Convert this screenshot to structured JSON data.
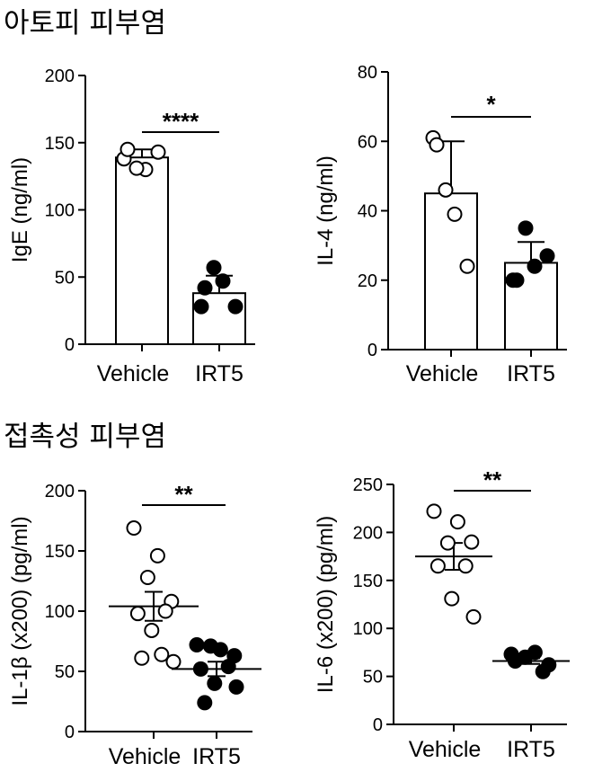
{
  "sections": [
    {
      "title": "아토피 피부염"
    },
    {
      "title": "접촉성 피부염"
    }
  ],
  "chart_data": [
    {
      "type": "bar",
      "ylabel": "IgE (ng/ml)",
      "ylim": [
        0,
        200
      ],
      "yticks": [
        0,
        50,
        100,
        150,
        200
      ],
      "categories": [
        "Vehicle",
        "IRT5"
      ],
      "means": [
        139,
        38
      ],
      "errors": [
        6,
        13
      ],
      "points": [
        [
          138,
          130,
          131,
          143,
          145
        ],
        [
          28,
          47,
          57,
          28,
          42
        ]
      ],
      "significance": "****"
    },
    {
      "type": "bar",
      "ylabel": "IL-4 (ng/ml)",
      "ylim": [
        0,
        80
      ],
      "yticks": [
        0,
        20,
        40,
        60,
        80
      ],
      "categories": [
        "Vehicle",
        "IRT5"
      ],
      "means": [
        45,
        25
      ],
      "errors": [
        15,
        6
      ],
      "points": [
        [
          61,
          39,
          46,
          24,
          59
        ],
        [
          20,
          24,
          35,
          27,
          20
        ]
      ],
      "significance": "*"
    },
    {
      "type": "scatter",
      "ylabel": "IL-1β (x200) (pg/ml)",
      "ylim": [
        0,
        200
      ],
      "yticks": [
        0,
        50,
        100,
        150,
        200
      ],
      "categories": [
        "Vehicle",
        "IRT5"
      ],
      "means": [
        104,
        52
      ],
      "errors": [
        12,
        6
      ],
      "points": [
        [
          169,
          146,
          128,
          108,
          98,
          100,
          84,
          58,
          61,
          64
        ],
        [
          72,
          68,
          71,
          63,
          52,
          54,
          40,
          37,
          24
        ]
      ],
      "significance": "**"
    },
    {
      "type": "scatter",
      "ylabel": "IL-6 (x200) (pg/ml)",
      "ylim": [
        0,
        250
      ],
      "yticks": [
        0,
        50,
        100,
        150,
        200,
        250
      ],
      "categories": [
        "Vehicle",
        "IRT5"
      ],
      "means": [
        175,
        66
      ],
      "errors": [
        14,
        3
      ],
      "points": [
        [
          222,
          211,
          189,
          190,
          165,
          165,
          131,
          112
        ],
        [
          73,
          75,
          70,
          62,
          66,
          55
        ]
      ],
      "significance": "**"
    }
  ]
}
